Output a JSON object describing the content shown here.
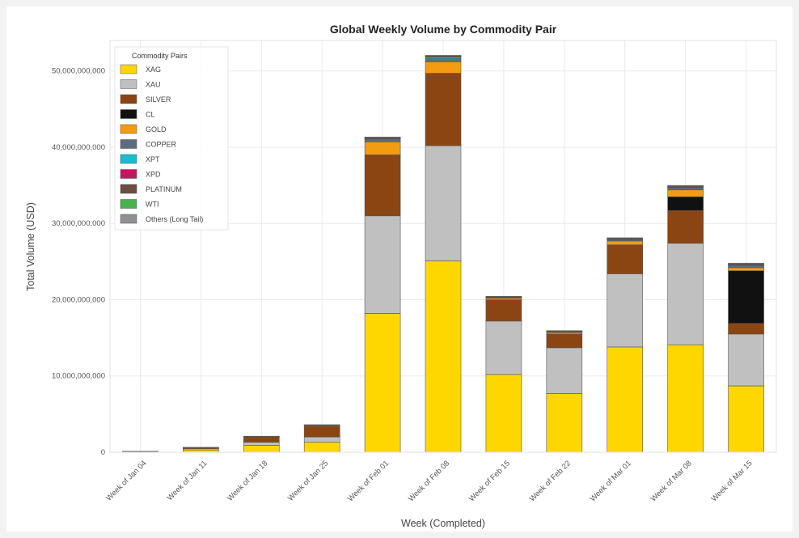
{
  "chart_data": {
    "type": "bar",
    "stacked": true,
    "title": "Global Weekly Volume by Commodity Pair",
    "xlabel": "Week (Completed)",
    "ylabel": "Total Volume (USD)",
    "ylim": [
      0,
      54000000000
    ],
    "yticks": [
      0,
      10000000000,
      20000000000,
      30000000000,
      40000000000,
      50000000000
    ],
    "ytick_labels": [
      "0",
      "10,000,000,000",
      "20,000,000,000",
      "30,000,000,000",
      "40,000,000,000",
      "50,000,000,000"
    ],
    "grid": true,
    "legend_title": "Commodity Pairs",
    "legend_position": "top-left",
    "categories": [
      "Week of Jan 04",
      "Week of Jan 11",
      "Week of Jan 18",
      "Week of Jan 25",
      "Week of Feb 01",
      "Week of Feb 08",
      "Week of Feb 15",
      "Week of Feb 22",
      "Week of Mar 01",
      "Week of Mar 08",
      "Week of Mar 15"
    ],
    "series": [
      {
        "name": "XAG",
        "color": "#FFD700",
        "values": [
          50000000,
          300000000,
          900000000,
          1300000000,
          18200000000,
          25100000000,
          10200000000,
          7700000000,
          13800000000,
          14100000000,
          8700000000
        ]
      },
      {
        "name": "XAU",
        "color": "#C0C0C0",
        "values": [
          30000000,
          150000000,
          400000000,
          700000000,
          12800000000,
          15100000000,
          7000000000,
          6000000000,
          9600000000,
          13300000000,
          6800000000
        ]
      },
      {
        "name": "SILVER",
        "color": "#8B4513",
        "values": [
          20000000,
          150000000,
          700000000,
          1400000000,
          8000000000,
          9500000000,
          2800000000,
          1800000000,
          3800000000,
          4300000000,
          1400000000
        ]
      },
      {
        "name": "CL",
        "color": "#111111",
        "values": [
          0,
          0,
          0,
          0,
          0,
          0,
          0,
          0,
          0,
          1800000000,
          6900000000
        ]
      },
      {
        "name": "GOLD",
        "color": "#F39C12",
        "values": [
          5000000,
          20000000,
          50000000,
          100000000,
          1700000000,
          1500000000,
          200000000,
          200000000,
          500000000,
          900000000,
          400000000
        ]
      },
      {
        "name": "COPPER",
        "color": "#5D6D7E",
        "values": [
          0,
          10000000,
          20000000,
          50000000,
          300000000,
          400000000,
          100000000,
          100000000,
          200000000,
          300000000,
          300000000
        ]
      },
      {
        "name": "XPT",
        "color": "#17BECF",
        "values": [
          0,
          0,
          0,
          10000000,
          100000000,
          200000000,
          20000000,
          20000000,
          50000000,
          50000000,
          50000000
        ]
      },
      {
        "name": "XPD",
        "color": "#C2185B",
        "values": [
          0,
          0,
          0,
          0,
          20000000,
          20000000,
          10000000,
          10000000,
          10000000,
          10000000,
          10000000
        ]
      },
      {
        "name": "PLATINUM",
        "color": "#6D4C41",
        "values": [
          0,
          0,
          10000000,
          20000000,
          100000000,
          100000000,
          50000000,
          50000000,
          100000000,
          100000000,
          100000000
        ]
      },
      {
        "name": "WTI",
        "color": "#4CAF50",
        "values": [
          0,
          0,
          0,
          0,
          20000000,
          30000000,
          10000000,
          10000000,
          10000000,
          30000000,
          40000000
        ]
      },
      {
        "name": "Others (Long Tail)",
        "color": "#909090",
        "values": [
          10000000,
          20000000,
          20000000,
          30000000,
          100000000,
          100000000,
          50000000,
          50000000,
          50000000,
          100000000,
          100000000
        ]
      }
    ]
  }
}
